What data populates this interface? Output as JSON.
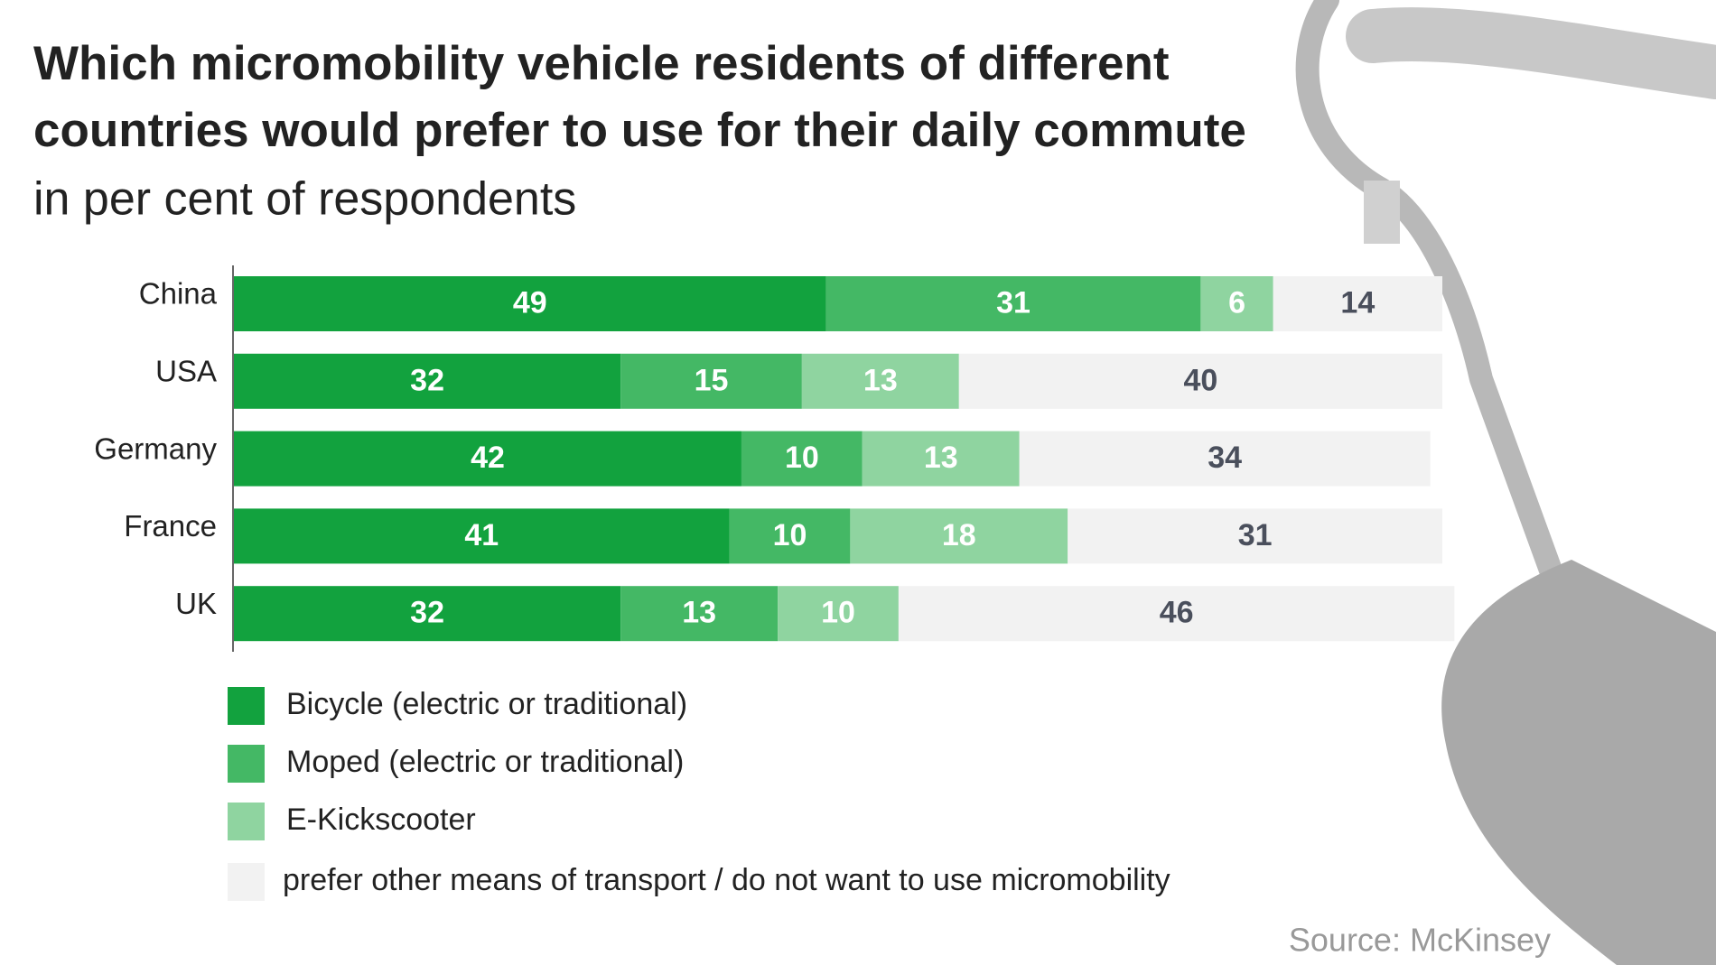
{
  "chart_data": {
    "type": "stacked-bar-horizontal",
    "title": [
      "Which micromobility vehicle residents of different",
      "countries would prefer to use for their daily commute"
    ],
    "subtitle": "in per cent of respondents",
    "source": "Source: McKinsey",
    "categories": [
      "China",
      "USA",
      "Germany",
      "France",
      "UK"
    ],
    "xlim": [
      0,
      100
    ],
    "series": [
      {
        "name": "Bicycle (electric or traditional)",
        "color": "#12a23e",
        "label_color": "#ffffff",
        "values": [
          49,
          32,
          42,
          41,
          32
        ]
      },
      {
        "name": "Moped (electric or traditional)",
        "color": "#44b865",
        "label_color": "#ffffff",
        "values": [
          31,
          15,
          10,
          10,
          13
        ]
      },
      {
        "name": "E-Kickscooter",
        "color": "#8fd4a0",
        "label_color": "#ffffff",
        "values": [
          6,
          13,
          13,
          18,
          10
        ]
      },
      {
        "name": "prefer other means of transport / do not want to use micromobility",
        "color": "#f2f2f2",
        "label_color": "#4a4f5c",
        "values": [
          14,
          40,
          34,
          31,
          46
        ]
      }
    ]
  }
}
